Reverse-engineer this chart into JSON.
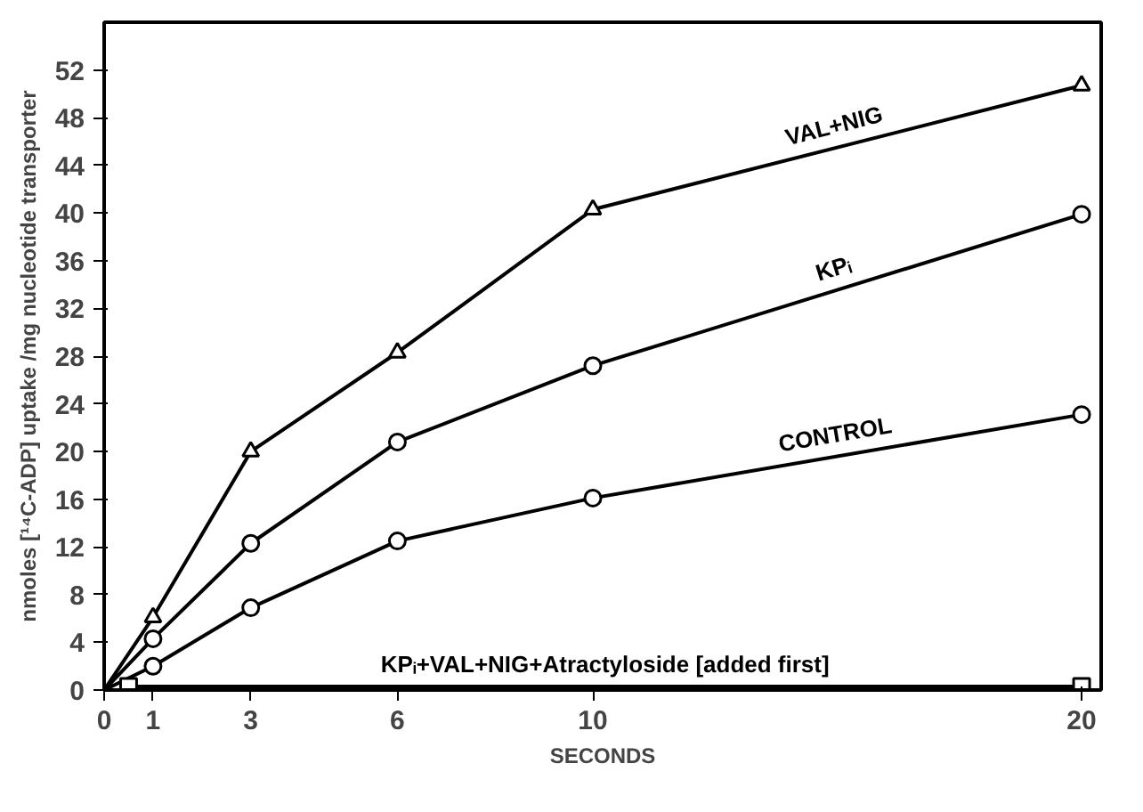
{
  "chart_data": {
    "type": "line",
    "xlabel": "SECONDS",
    "ylabel": "nmoles [¹⁴C-ADP] uptake /mg nucleotide transporter",
    "xlim": [
      0,
      20.4
    ],
    "ylim": [
      0,
      56
    ],
    "xticks": [
      0,
      1,
      3,
      6,
      10,
      20
    ],
    "yticks": [
      0,
      4,
      8,
      12,
      16,
      20,
      24,
      28,
      32,
      36,
      40,
      44,
      48,
      52
    ],
    "grid": false,
    "line_style": "solid",
    "series": [
      {
        "name": "VAL+NIG",
        "color": "#000000",
        "marker": "triangle",
        "x": [
          0,
          1,
          3,
          6,
          10,
          20
        ],
        "values": [
          0,
          6.1,
          20,
          28.3,
          40.3,
          50.7
        ]
      },
      {
        "name": "KPᵢ",
        "color": "#000000",
        "marker": "circle",
        "x": [
          0,
          1,
          3,
          6,
          10,
          20
        ],
        "values": [
          0,
          4.3,
          12.3,
          20.8,
          27.2,
          39.9
        ]
      },
      {
        "name": "CONTROL",
        "color": "#000000",
        "marker": "circle",
        "x": [
          0,
          1,
          3,
          6,
          10,
          20
        ],
        "values": [
          0,
          2,
          6.9,
          12.5,
          16.1,
          23.1
        ]
      },
      {
        "name": "KPᵢ+VAL+NIG+Atractyloside [added first]",
        "color": "#000000",
        "marker": "square",
        "x": [
          0.5,
          20
        ],
        "values": [
          0.3,
          0.3
        ]
      }
    ]
  }
}
